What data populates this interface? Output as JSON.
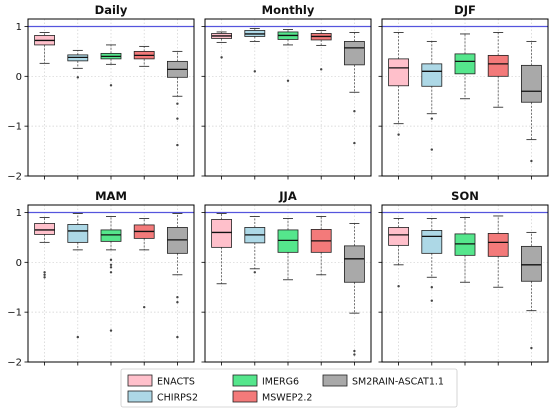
{
  "chart_data": {
    "type": "box",
    "ylim": [
      -2,
      1.15
    ],
    "yticks": [
      -2,
      -1,
      0,
      1
    ],
    "reference_line": 1,
    "reference_color": "#5555dd",
    "legend": {
      "placement": "bottom-center",
      "entries": [
        "ENACTS",
        "CHIRPS2",
        "IMERG6",
        "MSWEP2.2",
        "SM2RAIN-ASCAT1.1"
      ]
    },
    "series_colors": {
      "ENACTS": "#ffc0cb",
      "CHIRPS2": "#add8e6",
      "IMERG6": "#55e68c",
      "MSWEP2.2": "#f37a7a",
      "SM2RAIN-ASCAT1.1": "#a9a9a9"
    },
    "panels": [
      {
        "title": "Daily",
        "boxes": [
          {
            "q1": 0.63,
            "med": 0.72,
            "q3": 0.82,
            "wlo": 0.26,
            "whi": 0.88,
            "out": []
          },
          {
            "q1": 0.31,
            "med": 0.38,
            "q3": 0.43,
            "wlo": 0.16,
            "whi": 0.52,
            "out": [
              -0.02
            ]
          },
          {
            "q1": 0.35,
            "med": 0.4,
            "q3": 0.46,
            "wlo": 0.24,
            "whi": 0.63,
            "out": [
              -0.18
            ]
          },
          {
            "q1": 0.35,
            "med": 0.42,
            "q3": 0.5,
            "wlo": 0.2,
            "whi": 0.6,
            "out": []
          },
          {
            "q1": -0.02,
            "med": 0.14,
            "q3": 0.3,
            "wlo": -0.4,
            "whi": 0.5,
            "out": [
              -0.55,
              -0.85,
              -1.38
            ]
          }
        ]
      },
      {
        "title": "Monthly",
        "boxes": [
          {
            "q1": 0.76,
            "med": 0.81,
            "q3": 0.86,
            "wlo": 0.68,
            "whi": 0.89,
            "out": [
              0.38
            ]
          },
          {
            "q1": 0.8,
            "med": 0.85,
            "q3": 0.92,
            "wlo": 0.7,
            "whi": 0.96,
            "out": [
              0.1
            ]
          },
          {
            "q1": 0.74,
            "med": 0.82,
            "q3": 0.89,
            "wlo": 0.63,
            "whi": 0.94,
            "out": [
              -0.09
            ]
          },
          {
            "q1": 0.73,
            "med": 0.8,
            "q3": 0.86,
            "wlo": 0.62,
            "whi": 0.92,
            "out": [
              0.14
            ]
          },
          {
            "q1": 0.23,
            "med": 0.57,
            "q3": 0.7,
            "wlo": -0.32,
            "whi": 0.88,
            "out": [
              -0.7,
              -1.34
            ]
          }
        ]
      },
      {
        "title": "DJF",
        "boxes": [
          {
            "q1": -0.19,
            "med": 0.17,
            "q3": 0.35,
            "wlo": -0.95,
            "whi": 0.88,
            "out": [
              -1.17
            ]
          },
          {
            "q1": -0.2,
            "med": 0.1,
            "q3": 0.25,
            "wlo": -0.75,
            "whi": 0.7,
            "out": [
              -0.85,
              -1.47
            ]
          },
          {
            "q1": 0.05,
            "med": 0.3,
            "q3": 0.45,
            "wlo": -0.45,
            "whi": 0.85,
            "out": []
          },
          {
            "q1": 0.0,
            "med": 0.25,
            "q3": 0.42,
            "wlo": -0.62,
            "whi": 0.88,
            "out": []
          },
          {
            "q1": -0.52,
            "med": -0.3,
            "q3": 0.22,
            "wlo": -1.27,
            "whi": 0.7,
            "out": [
              -1.7
            ]
          }
        ]
      },
      {
        "title": "MAM",
        "boxes": [
          {
            "q1": 0.56,
            "med": 0.65,
            "q3": 0.78,
            "wlo": 0.4,
            "whi": 0.9,
            "out": [
              -0.2,
              -0.25,
              -0.3
            ]
          },
          {
            "q1": 0.4,
            "med": 0.63,
            "q3": 0.76,
            "wlo": 0.25,
            "whi": 0.98,
            "out": [
              -1.5
            ]
          },
          {
            "q1": 0.42,
            "med": 0.55,
            "q3": 0.65,
            "wlo": 0.25,
            "whi": 0.92,
            "out": [
              0.05,
              -0.05,
              -0.1,
              -0.2,
              -1.37
            ]
          },
          {
            "q1": 0.48,
            "med": 0.62,
            "q3": 0.75,
            "wlo": 0.25,
            "whi": 0.88,
            "out": [
              -0.9
            ]
          },
          {
            "q1": 0.18,
            "med": 0.45,
            "q3": 0.7,
            "wlo": -0.25,
            "whi": 0.98,
            "out": [
              -0.7,
              -0.8,
              -1.5
            ]
          }
        ]
      },
      {
        "title": "JJA",
        "boxes": [
          {
            "q1": 0.3,
            "med": 0.6,
            "q3": 0.86,
            "wlo": -0.43,
            "whi": 0.98,
            "out": []
          },
          {
            "q1": 0.39,
            "med": 0.55,
            "q3": 0.7,
            "wlo": -0.13,
            "whi": 0.92,
            "out": [
              -0.2
            ]
          },
          {
            "q1": 0.2,
            "med": 0.44,
            "q3": 0.65,
            "wlo": -0.35,
            "whi": 0.88,
            "out": []
          },
          {
            "q1": 0.2,
            "med": 0.43,
            "q3": 0.66,
            "wlo": -0.25,
            "whi": 0.92,
            "out": []
          },
          {
            "q1": -0.4,
            "med": 0.07,
            "q3": 0.33,
            "wlo": -1.02,
            "whi": 0.78,
            "out": [
              -1.78,
              -1.85
            ]
          }
        ]
      },
      {
        "title": "SON",
        "boxes": [
          {
            "q1": 0.34,
            "med": 0.55,
            "q3": 0.7,
            "wlo": -0.05,
            "whi": 0.88,
            "out": [
              -0.48
            ]
          },
          {
            "q1": 0.18,
            "med": 0.52,
            "q3": 0.64,
            "wlo": -0.3,
            "whi": 0.88,
            "out": [
              -0.5,
              -0.77
            ]
          },
          {
            "q1": 0.14,
            "med": 0.37,
            "q3": 0.57,
            "wlo": -0.4,
            "whi": 0.9,
            "out": []
          },
          {
            "q1": 0.12,
            "med": 0.4,
            "q3": 0.58,
            "wlo": -0.5,
            "whi": 0.93,
            "out": []
          },
          {
            "q1": -0.38,
            "med": -0.05,
            "q3": 0.32,
            "wlo": -0.97,
            "whi": 0.6,
            "out": [
              -1.72
            ]
          }
        ]
      }
    ]
  }
}
